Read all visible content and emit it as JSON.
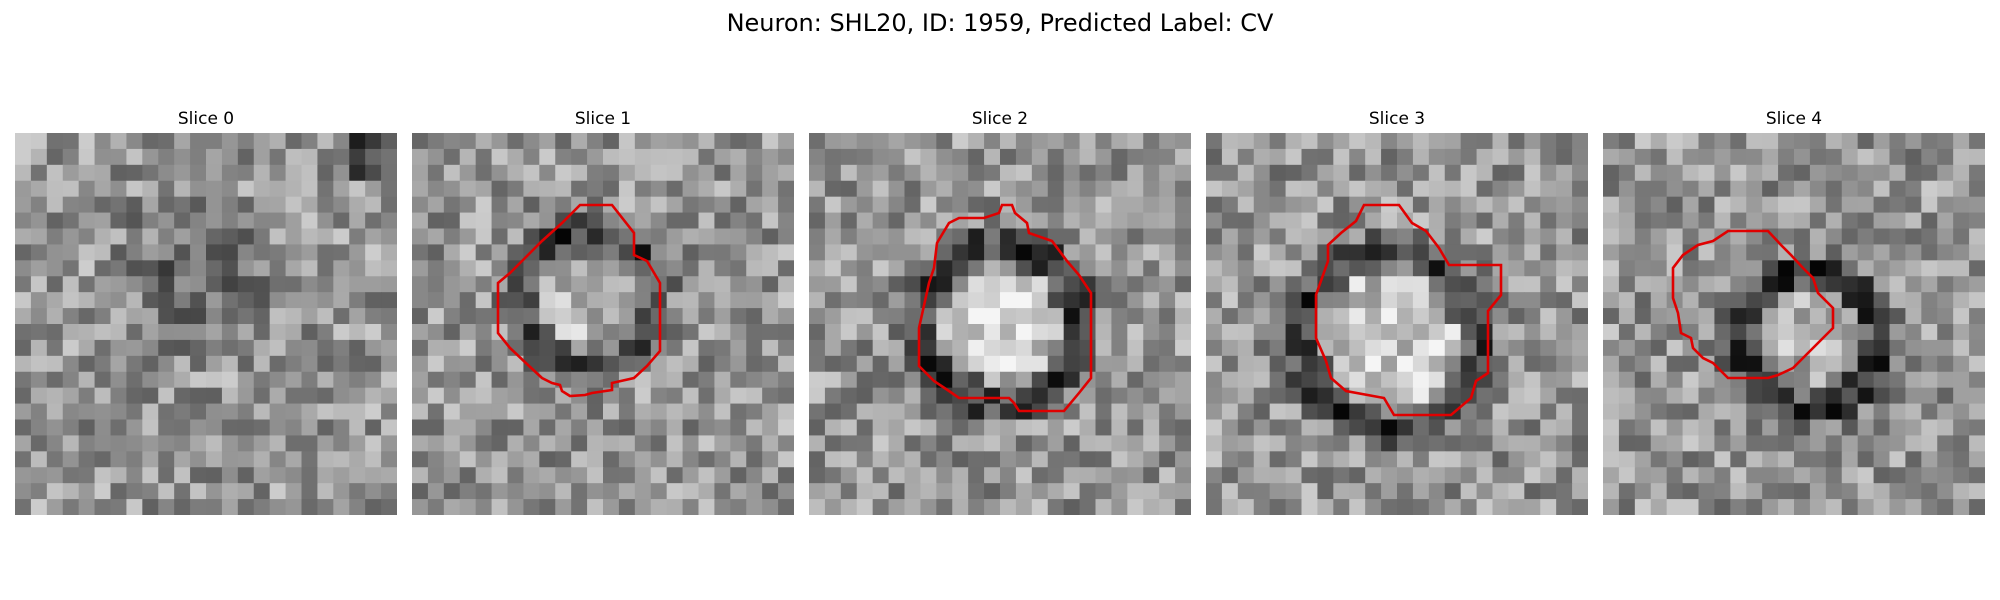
{
  "figure": {
    "title": "Neuron: SHL20, ID: 1959, Predicted Label: CV",
    "colormap": "gray",
    "outline_color": "#e00000"
  },
  "panels": [
    {
      "title": "Slice 0"
    },
    {
      "title": "Slice 1"
    },
    {
      "title": "Slice 2"
    },
    {
      "title": "Slice 3"
    },
    {
      "title": "Slice 4"
    }
  ]
}
